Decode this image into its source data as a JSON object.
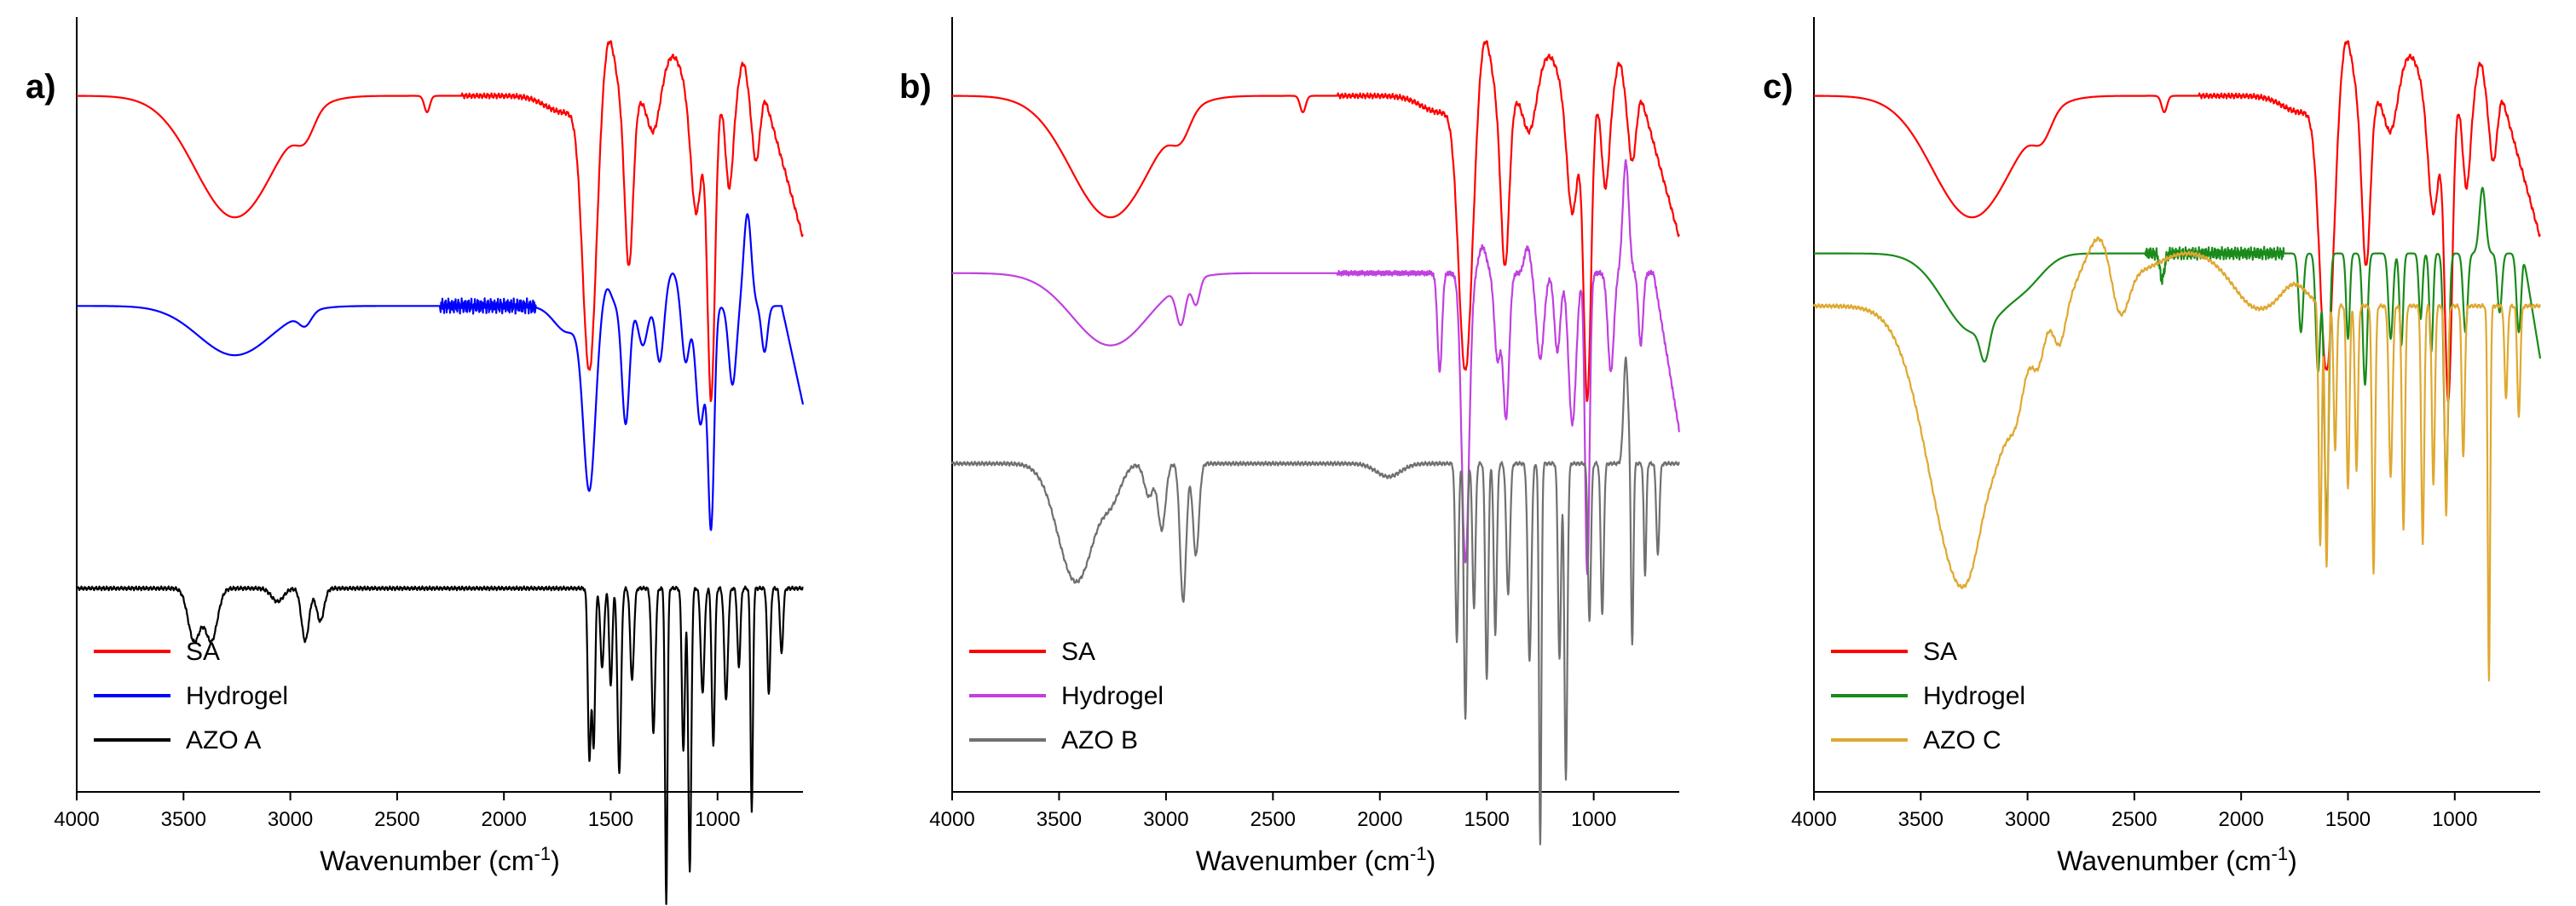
{
  "chart_data": [
    {
      "type": "line",
      "panel_label": "a)",
      "xlabel": "Wavenumber (cm",
      "xlabel_sup": "-1",
      "xlabel_suffix": ")",
      "ylabel": "",
      "xlim": [
        4000,
        600
      ],
      "x_reversed": true,
      "y_ticks_shown": false,
      "x_ticks": [
        4000,
        3500,
        3000,
        2500,
        2000,
        1500,
        1000
      ],
      "grid": false,
      "legend_position": "bottom-left",
      "series": [
        {
          "name": "SA",
          "color": "#ff0000",
          "baseline": 10.0,
          "profile": "SA"
        },
        {
          "name": "Hydrogel",
          "color": "#0000ff",
          "baseline": 6.8,
          "profile": "Hydrogel-A"
        },
        {
          "name": "AZO A",
          "color": "#000000",
          "baseline": 2.5,
          "profile": "AZO-A"
        }
      ]
    },
    {
      "type": "line",
      "panel_label": "b)",
      "xlabel": "Wavenumber (cm",
      "xlabel_sup": "-1",
      "xlabel_suffix": ")",
      "ylabel": "",
      "xlim": [
        4000,
        600
      ],
      "x_reversed": true,
      "y_ticks_shown": false,
      "x_ticks": [
        4000,
        3500,
        3000,
        2500,
        2000,
        1500,
        1000
      ],
      "grid": false,
      "legend_position": "bottom-left",
      "series": [
        {
          "name": "SA",
          "color": "#ff0000",
          "baseline": 10.0,
          "profile": "SA"
        },
        {
          "name": "Hydrogel",
          "color": "#c040e0",
          "baseline": 7.3,
          "profile": "Hydrogel-B"
        },
        {
          "name": "AZO B",
          "color": "#707070",
          "baseline": 4.4,
          "profile": "AZO-B"
        }
      ]
    },
    {
      "type": "line",
      "panel_label": "c)",
      "xlabel": "Wavenumber (cm",
      "xlabel_sup": "-1",
      "xlabel_suffix": ")",
      "ylabel": "",
      "xlim": [
        4000,
        600
      ],
      "x_reversed": true,
      "y_ticks_shown": false,
      "x_ticks": [
        4000,
        3500,
        3000,
        2500,
        2000,
        1500,
        1000
      ],
      "grid": false,
      "legend_position": "bottom-left",
      "series": [
        {
          "name": "SA",
          "color": "#ff0000",
          "baseline": 10.0,
          "profile": "SA"
        },
        {
          "name": "Hydrogel",
          "color": "#1a8a1a",
          "baseline": 7.6,
          "profile": "Hydrogel-C"
        },
        {
          "name": "AZO C",
          "color": "#e0a830",
          "baseline": 6.8,
          "profile": "AZO-C"
        }
      ]
    }
  ]
}
